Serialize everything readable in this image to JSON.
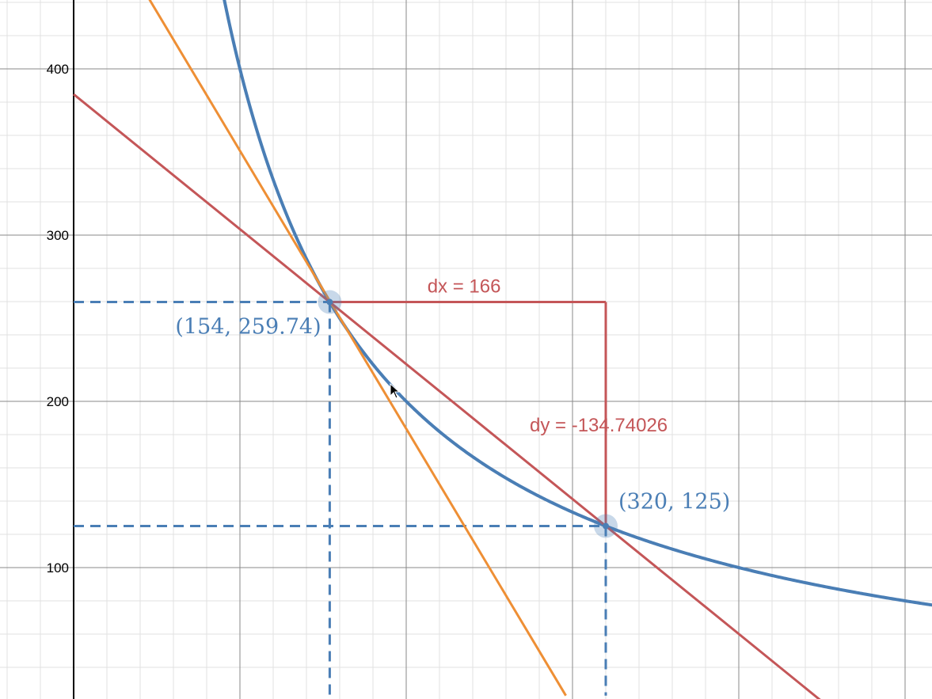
{
  "chart_data": {
    "type": "line",
    "title": "",
    "xlabel": "",
    "ylabel": "",
    "xlim": [
      0,
      515
    ],
    "ylim": [
      23,
      443
    ],
    "grid": true,
    "y_ticks": [
      100,
      200,
      300,
      400
    ],
    "y_tick_labels": [
      "100",
      "200",
      "300",
      "400"
    ],
    "x_ticks": [
      100,
      200,
      300,
      400,
      500
    ],
    "x_tick_labels": [],
    "series": [
      {
        "kind": "curve",
        "expression": "y = 40000 / x",
        "color": "#4a7eb5",
        "x": [
          98,
          100,
          110,
          125,
          140,
          154,
          175,
          200,
          230,
          260,
          290,
          320,
          360,
          400,
          440,
          480,
          515
        ],
        "y": [
          408.16,
          400,
          363.64,
          320,
          285.71,
          259.74,
          228.57,
          200,
          173.91,
          153.85,
          137.93,
          125,
          111.11,
          100,
          90.91,
          83.33,
          77.67
        ]
      },
      {
        "kind": "tangent",
        "color": "#ee8f35",
        "x": [
          44,
          296
        ],
        "y": [
          444.4,
          23
        ]
      },
      {
        "kind": "secant",
        "color": "#c45658",
        "x": [
          0,
          450
        ],
        "y": [
          384.74,
          19.5
        ]
      }
    ],
    "guides": [
      {
        "kind": "dashed",
        "color": "#4a7eb5",
        "from": [
          0,
          259.74
        ],
        "to": [
          154,
          259.74
        ]
      },
      {
        "kind": "dashed",
        "color": "#4a7eb5",
        "from": [
          154,
          259.74
        ],
        "to": [
          154,
          23
        ]
      },
      {
        "kind": "dashed",
        "color": "#4a7eb5",
        "from": [
          0,
          125
        ],
        "to": [
          320,
          125
        ]
      },
      {
        "kind": "dashed",
        "color": "#4a7eb5",
        "from": [
          320,
          125
        ],
        "to": [
          320,
          23
        ]
      },
      {
        "kind": "solid",
        "color": "#c45658",
        "from": [
          154,
          259.74
        ],
        "to": [
          320,
          259.74
        ]
      },
      {
        "kind": "solid",
        "color": "#c45658",
        "from": [
          320,
          259.74
        ],
        "to": [
          320,
          125
        ]
      }
    ],
    "points": [
      {
        "x": 154,
        "y": 259.74,
        "label": "(154, 259.74)",
        "color": "#4a7eb5"
      },
      {
        "x": 320,
        "y": 125,
        "label": "(320, 125)",
        "color": "#4a7eb5"
      }
    ],
    "annotations": [
      {
        "text": "dx = 166",
        "color": "#c45658"
      },
      {
        "text": "dy = -134.74026",
        "color": "#c45658"
      }
    ]
  }
}
